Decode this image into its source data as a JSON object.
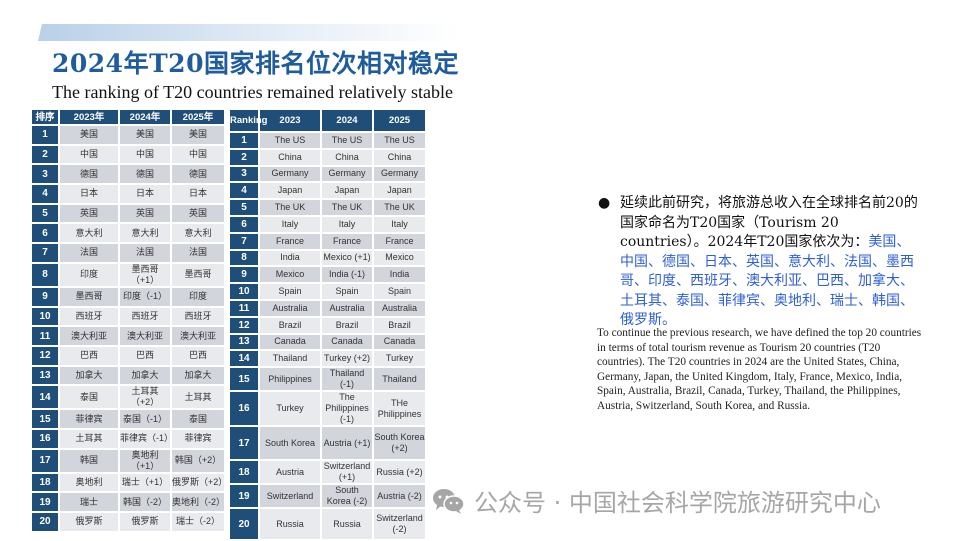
{
  "header": {
    "title": "2024年T20国家排名位次相对稳定",
    "subtitle": "The ranking of T20 countries remained relatively stable"
  },
  "table_cn": {
    "headers": [
      "排序",
      "2023年",
      "2024年",
      "2025年"
    ],
    "rows": [
      [
        "1",
        "美国",
        "美国",
        "美国"
      ],
      [
        "2",
        "中国",
        "中国",
        "中国"
      ],
      [
        "3",
        "德国",
        "德国",
        "德国"
      ],
      [
        "4",
        "日本",
        "日本",
        "日本"
      ],
      [
        "5",
        "英国",
        "英国",
        "英国"
      ],
      [
        "6",
        "意大利",
        "意大利",
        "意大利"
      ],
      [
        "7",
        "法国",
        "法国",
        "法国"
      ],
      [
        "8",
        "印度",
        "墨西哥（+1）",
        "墨西哥"
      ],
      [
        "9",
        "墨西哥",
        "印度（-1）",
        "印度"
      ],
      [
        "10",
        "西班牙",
        "西班牙",
        "西班牙"
      ],
      [
        "11",
        "澳大利亚",
        "澳大利亚",
        "澳大利亚"
      ],
      [
        "12",
        "巴西",
        "巴西",
        "巴西"
      ],
      [
        "13",
        "加拿大",
        "加拿大",
        "加拿大"
      ],
      [
        "14",
        "泰国",
        "土耳其（+2）",
        "土耳其"
      ],
      [
        "15",
        "菲律宾",
        "泰国（-1）",
        "泰国"
      ],
      [
        "16",
        "土耳其",
        "菲律宾（-1）",
        "菲律宾"
      ],
      [
        "17",
        "韩国",
        "奥地利（+1）",
        "韩国（+2）"
      ],
      [
        "18",
        "奥地利",
        "瑞士（+1）",
        "俄罗斯（+2）"
      ],
      [
        "19",
        "瑞士",
        "韩国（-2）",
        "奥地利（-2）"
      ],
      [
        "20",
        "俄罗斯",
        "俄罗斯",
        "瑞士（-2）"
      ]
    ]
  },
  "table_en": {
    "headers": [
      "Ranking",
      "2023",
      "2024",
      "2025"
    ],
    "rows": [
      [
        "1",
        "The US",
        "The US",
        "The US"
      ],
      [
        "2",
        "China",
        "China",
        "China"
      ],
      [
        "3",
        "Germany",
        "Germany",
        "Germany"
      ],
      [
        "4",
        "Japan",
        "Japan",
        "Japan"
      ],
      [
        "5",
        "The UK",
        "The UK",
        "The UK"
      ],
      [
        "6",
        "Italy",
        "Italy",
        "Italy"
      ],
      [
        "7",
        "France",
        "France",
        "France"
      ],
      [
        "8",
        "India",
        "Mexico (+1)",
        "Mexico"
      ],
      [
        "9",
        "Mexico",
        "India (-1)",
        "India"
      ],
      [
        "10",
        "Spain",
        "Spain",
        "Spain"
      ],
      [
        "11",
        "Australia",
        "Australia",
        "Australia"
      ],
      [
        "12",
        "Brazil",
        "Brazil",
        "Brazil"
      ],
      [
        "13",
        "Canada",
        "Canada",
        "Canada"
      ],
      [
        "14",
        "Thailand",
        "Turkey (+2)",
        "Turkey"
      ],
      [
        "15",
        "Philippines",
        "Thailand (-1)",
        "Thailand"
      ],
      [
        "16",
        "Turkey",
        "The Philippines (-1)",
        "THe Philippines"
      ],
      [
        "17",
        "South Korea",
        "Austria (+1)",
        "South Korea (+2)"
      ],
      [
        "18",
        "Austria",
        "Switzerland (+1)",
        "Russia (+2)"
      ],
      [
        "19",
        "Switzerland",
        "South Korea (-2)",
        "Austria (-2)"
      ],
      [
        "20",
        "Russia",
        "Russia",
        "Switzerland (-2)"
      ]
    ]
  },
  "description": {
    "bullet_icon": "filled-circle",
    "cn_intro": "延续此前研究，将旅游总收入在全球排名前20的国家命名为T20国家（Tourism 20 countries）。2024年T20国家依次为：",
    "cn_list": "美国、中国、德国、日本、英国、意大利、法国、墨西哥、印度、西班牙、澳大利亚、巴西、加拿大、土耳其、泰国、菲律宾、奥地利、瑞士、韩国、俄罗斯。",
    "en_text": "To continue the previous research, we have defined the top 20 countries in terms of total tourism revenue as Tourism 20 countries (T20 countries). The T20 countries in 2024 are the United States, China, Germany, Japan, the United Kingdom, Italy, France, Mexico, India, Spain, Australia, Brazil, Canada, Turkey, Thailand, the Philippines, Austria, Switzerland, South Korea, and Russia."
  },
  "watermark": {
    "icon": "wechat-icon",
    "text": "公众号 · 中国社会科学院旅游研究中心"
  },
  "colors": {
    "title": "#1f5c9e",
    "table_header": "#1f4e79",
    "row_odd": "#d2d5dc",
    "row_even": "#e9eaee",
    "highlight": "#2e5fd6"
  }
}
